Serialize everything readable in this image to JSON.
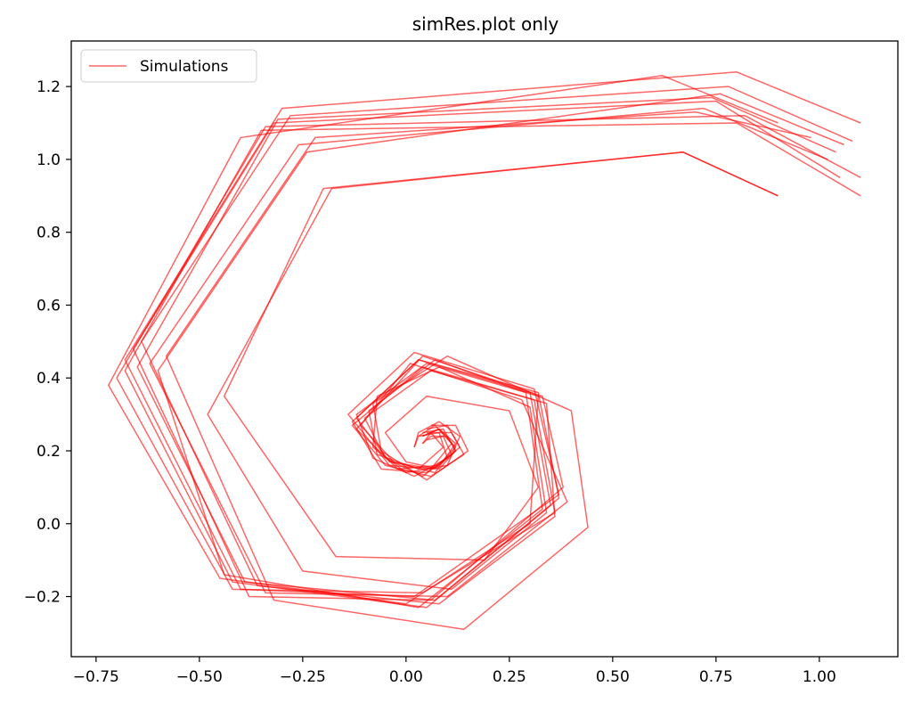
{
  "chart_data": {
    "type": "line",
    "title": "simRes.plot only",
    "xlabel": "",
    "ylabel": "",
    "xlim": [
      -0.81,
      1.19
    ],
    "ylim": [
      -0.365,
      1.325
    ],
    "xticks": [
      -0.75,
      -0.5,
      -0.25,
      0.0,
      0.25,
      0.5,
      0.75,
      1.0
    ],
    "xtick_labels": [
      "−0.75",
      "−0.50",
      "−0.25",
      "0.00",
      "0.25",
      "0.50",
      "0.75",
      "1.00"
    ],
    "yticks": [
      -0.2,
      0.0,
      0.2,
      0.4,
      0.6,
      0.8,
      1.0,
      1.2
    ],
    "ytick_labels": [
      "−0.2",
      "0.0",
      "0.2",
      "0.4",
      "0.6",
      "0.8",
      "1.0",
      "1.2"
    ],
    "grid": false,
    "legend": {
      "position": "top-left",
      "entries": [
        "Simulations"
      ]
    },
    "line_color": "#ff0000",
    "line_opacity": 0.6,
    "series": [
      {
        "points": [
          [
            0.9,
            0.9
          ],
          [
            0.67,
            1.02
          ],
          [
            -0.2,
            0.92
          ],
          [
            -0.44,
            0.35
          ],
          [
            -0.17,
            -0.09
          ],
          [
            0.19,
            -0.1
          ],
          [
            0.32,
            0.1
          ],
          [
            0.25,
            0.31
          ],
          [
            0.05,
            0.35
          ],
          [
            -0.05,
            0.25
          ],
          [
            0.0,
            0.17
          ],
          [
            0.08,
            0.15
          ],
          [
            0.12,
            0.2
          ],
          [
            0.1,
            0.24
          ],
          [
            0.06,
            0.24
          ],
          [
            0.04,
            0.22
          ]
        ]
      },
      {
        "points": [
          [
            0.9,
            0.9
          ],
          [
            0.67,
            1.02
          ],
          [
            -0.18,
            0.92
          ],
          [
            -0.48,
            0.3
          ],
          [
            -0.25,
            -0.13
          ],
          [
            0.11,
            -0.18
          ],
          [
            0.34,
            0.03
          ],
          [
            0.3,
            0.32
          ],
          [
            0.08,
            0.43
          ],
          [
            -0.07,
            0.35
          ],
          [
            -0.08,
            0.21
          ],
          [
            0.0,
            0.14
          ],
          [
            0.1,
            0.16
          ],
          [
            0.13,
            0.24
          ],
          [
            0.08,
            0.28
          ],
          [
            0.03,
            0.25
          ],
          [
            0.02,
            0.21
          ]
        ]
      },
      {
        "points": [
          [
            0.9,
            1.1
          ],
          [
            0.62,
            1.23
          ],
          [
            -0.4,
            1.06
          ],
          [
            -0.72,
            0.38
          ],
          [
            -0.45,
            -0.15
          ],
          [
            0.0,
            -0.22
          ],
          [
            0.3,
            0.0
          ],
          [
            0.32,
            0.35
          ],
          [
            0.05,
            0.44
          ],
          [
            -0.12,
            0.3
          ],
          [
            -0.08,
            0.18
          ],
          [
            0.02,
            0.13
          ],
          [
            0.1,
            0.18
          ],
          [
            0.08,
            0.25
          ],
          [
            0.03,
            0.24
          ],
          [
            0.02,
            0.21
          ]
        ]
      },
      {
        "points": [
          [
            1.1,
            0.9
          ],
          [
            0.8,
            1.1
          ],
          [
            -0.35,
            1.08
          ],
          [
            -0.68,
            0.42
          ],
          [
            -0.42,
            -0.16
          ],
          [
            0.05,
            -0.23
          ],
          [
            0.35,
            0.05
          ],
          [
            0.3,
            0.36
          ],
          [
            0.03,
            0.45
          ],
          [
            -0.13,
            0.28
          ],
          [
            -0.06,
            0.15
          ],
          [
            0.05,
            0.14
          ],
          [
            0.12,
            0.2
          ],
          [
            0.09,
            0.26
          ],
          [
            0.04,
            0.25
          ]
        ]
      },
      {
        "points": [
          [
            1.1,
            1.1
          ],
          [
            0.8,
            1.24
          ],
          [
            -0.3,
            1.14
          ],
          [
            -0.68,
            0.45
          ],
          [
            -0.4,
            -0.18
          ],
          [
            0.02,
            -0.2
          ],
          [
            0.37,
            0.08
          ],
          [
            0.31,
            0.37
          ],
          [
            0.02,
            0.47
          ],
          [
            -0.14,
            0.3
          ],
          [
            -0.04,
            0.16
          ],
          [
            0.06,
            0.15
          ],
          [
            0.11,
            0.22
          ],
          [
            0.07,
            0.27
          ],
          [
            0.03,
            0.24
          ]
        ]
      },
      {
        "points": [
          [
            1.05,
            0.95
          ],
          [
            0.75,
            1.16
          ],
          [
            -0.32,
            1.1
          ],
          [
            -0.66,
            0.48
          ],
          [
            -0.38,
            -0.2
          ],
          [
            0.06,
            -0.21
          ],
          [
            0.38,
            0.1
          ],
          [
            0.33,
            0.35
          ],
          [
            0.04,
            0.46
          ],
          [
            -0.12,
            0.26
          ],
          [
            -0.02,
            0.15
          ],
          [
            0.08,
            0.16
          ],
          [
            0.13,
            0.21
          ],
          [
            0.1,
            0.27
          ],
          [
            0.05,
            0.26
          ]
        ]
      },
      {
        "points": [
          [
            1.08,
            1.05
          ],
          [
            0.78,
            1.2
          ],
          [
            -0.28,
            1.12
          ],
          [
            -0.64,
            0.5
          ],
          [
            -0.36,
            -0.17
          ],
          [
            0.08,
            -0.22
          ],
          [
            0.36,
            0.02
          ],
          [
            0.34,
            0.33
          ],
          [
            0.06,
            0.42
          ],
          [
            -0.1,
            0.29
          ],
          [
            -0.05,
            0.18
          ],
          [
            0.04,
            0.13
          ],
          [
            0.11,
            0.19
          ],
          [
            0.09,
            0.24
          ],
          [
            0.05,
            0.23
          ]
        ]
      },
      {
        "points": [
          [
            1.02,
            1.0
          ],
          [
            0.72,
            1.14
          ],
          [
            -0.26,
            1.04
          ],
          [
            -0.62,
            0.44
          ],
          [
            -0.34,
            -0.19
          ],
          [
            0.1,
            -0.2
          ],
          [
            0.39,
            0.06
          ],
          [
            0.28,
            0.34
          ],
          [
            0.01,
            0.44
          ],
          [
            -0.11,
            0.27
          ],
          [
            -0.03,
            0.17
          ],
          [
            0.07,
            0.14
          ],
          [
            0.12,
            0.22
          ],
          [
            0.08,
            0.26
          ],
          [
            0.04,
            0.24
          ]
        ]
      },
      {
        "points": [
          [
            1.06,
            1.04
          ],
          [
            0.76,
            1.18
          ],
          [
            -0.24,
            1.02
          ],
          [
            -0.6,
            0.42
          ],
          [
            -0.44,
            -0.14
          ],
          [
            0.03,
            -0.23
          ],
          [
            0.33,
            0.04
          ],
          [
            0.29,
            0.36
          ],
          [
            0.07,
            0.45
          ],
          [
            -0.09,
            0.31
          ],
          [
            -0.07,
            0.19
          ],
          [
            0.03,
            0.15
          ],
          [
            0.09,
            0.21
          ],
          [
            0.06,
            0.25
          ],
          [
            0.04,
            0.22
          ]
        ]
      },
      {
        "points": [
          [
            0.98,
            1.06
          ],
          [
            0.7,
            1.13
          ],
          [
            -0.22,
            1.06
          ],
          [
            -0.58,
            0.46
          ],
          [
            -0.32,
            -0.21
          ],
          [
            0.14,
            -0.29
          ],
          [
            0.44,
            -0.01
          ],
          [
            0.4,
            0.31
          ],
          [
            0.1,
            0.46
          ],
          [
            -0.08,
            0.33
          ],
          [
            -0.06,
            0.2
          ],
          [
            0.05,
            0.12
          ],
          [
            0.15,
            0.2
          ],
          [
            0.12,
            0.27
          ],
          [
            0.06,
            0.27
          ]
        ]
      },
      {
        "points": [
          [
            1.1,
            0.95
          ],
          [
            0.82,
            1.12
          ],
          [
            -0.34,
            1.09
          ],
          [
            -0.7,
            0.4
          ],
          [
            -0.42,
            -0.18
          ],
          [
            0.04,
            -0.19
          ],
          [
            0.36,
            0.03
          ],
          [
            0.31,
            0.34
          ],
          [
            0.04,
            0.43
          ],
          [
            -0.13,
            0.27
          ],
          [
            -0.05,
            0.16
          ],
          [
            0.06,
            0.13
          ],
          [
            0.14,
            0.19
          ],
          [
            0.11,
            0.25
          ],
          [
            0.05,
            0.25
          ]
        ]
      },
      {
        "points": [
          [
            1.04,
            1.02
          ],
          [
            0.74,
            1.17
          ],
          [
            -0.31,
            1.11
          ],
          [
            -0.65,
            0.43
          ],
          [
            -0.39,
            -0.16
          ],
          [
            0.07,
            -0.21
          ],
          [
            0.37,
            0.07
          ],
          [
            0.32,
            0.36
          ],
          [
            0.03,
            0.45
          ],
          [
            -0.12,
            0.29
          ],
          [
            -0.04,
            0.17
          ],
          [
            0.07,
            0.15
          ],
          [
            0.12,
            0.21
          ],
          [
            0.08,
            0.26
          ],
          [
            0.04,
            0.24
          ]
        ]
      }
    ]
  }
}
